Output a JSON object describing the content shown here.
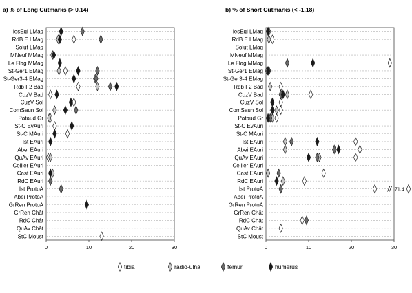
{
  "chart_data": [
    {
      "type": "scatter",
      "title": "a)  % of Long Cutmarks (> 0.14)",
      "categories": [
        "lesEgl LMag",
        "RdB E LMag",
        "Solut LMag",
        "MNeuf MMag",
        "Le Flag MMag",
        "St-Ger1 EMag",
        "St-Ger3-4 EMag",
        "Rdb F2 Bad",
        "CuzV Bad",
        "CuzV Sol",
        "ComSaun Sol",
        "Pataud Gr",
        "St-C EvAuri",
        "St-C MAuri",
        "Ist EAuri",
        "Abei EAuri",
        "QuAv EAuri",
        "Cellier EAuri",
        "Cast EAuri",
        "RdC EAuri",
        "Ist ProtoA",
        "Abei ProtoA",
        "GrRen ProtoA",
        "GrRen Chât",
        "RdC Chât",
        "QuAv Chât",
        "StC Moust"
      ],
      "xlim": [
        0,
        30
      ],
      "xticks": [
        "0",
        "10",
        "20",
        "30"
      ],
      "series": [
        {
          "name": "tibia",
          "values": [
            null,
            6.5,
            null,
            null,
            null,
            4.5,
            null,
            7.5,
            1,
            6.5,
            null,
            1,
            2,
            5,
            null,
            null,
            0.5,
            null,
            1,
            null,
            null,
            null,
            null,
            null,
            null,
            null,
            13
          ]
        },
        {
          "name": "radio-ulna",
          "values": [
            null,
            2.8,
            null,
            1.5,
            null,
            3,
            11.5,
            12,
            null,
            null,
            2,
            0.7,
            null,
            null,
            null,
            null,
            1,
            null,
            1.5,
            null,
            null,
            null,
            null,
            null,
            null,
            null,
            null
          ]
        },
        {
          "name": "femur",
          "values": [
            8.5,
            12.8,
            null,
            null,
            null,
            12,
            11.7,
            15,
            null,
            null,
            7,
            null,
            null,
            null,
            null,
            null,
            null,
            null,
            null,
            1,
            3.5,
            null,
            null,
            null,
            null,
            null,
            null
          ]
        },
        {
          "name": "humerus",
          "values": [
            3.5,
            3.2,
            null,
            1.8,
            3.2,
            7.5,
            6.5,
            16.5,
            2.5,
            5.8,
            4.5,
            null,
            6,
            2,
            1,
            null,
            null,
            null,
            1,
            null,
            null,
            null,
            9.5,
            null,
            null,
            null,
            null
          ]
        }
      ]
    },
    {
      "type": "scatter",
      "title": "b)  % of Short Cutmarks (< -1.18)",
      "categories": [
        "lesEgl LMag",
        "RdB E LMag",
        "Solut LMag",
        "MNeuf MMag",
        "Le Flag MMag",
        "St-Ger1 EMag",
        "St-Ger3-4 EMag",
        "Rdb F2 Bad",
        "CuzV Bad",
        "CuzV Sol",
        "ComSaun Sol",
        "Pataud Gr",
        "St-C EvAuri",
        "St-C MAuri",
        "Ist EAuri",
        "Abei EAuri",
        "QuAv EAuri",
        "Cellier EAuri",
        "Cast EAuri",
        "RdC EAuri",
        "Ist ProtoA",
        "Abei ProtoA",
        "GrRen ProtoA",
        "GrRen Chât",
        "RdC Chât",
        "QuAv Chât",
        "StC Moust"
      ],
      "xlim": [
        0,
        30
      ],
      "xticks": [
        "0",
        "10",
        "20",
        "30"
      ],
      "overflow_note": "71.4",
      "series": [
        {
          "name": "tibia",
          "values": [
            null,
            1.5,
            null,
            null,
            29,
            null,
            null,
            3.5,
            10.5,
            3.5,
            3.5,
            2.5,
            null,
            null,
            21,
            22,
            21,
            null,
            13.5,
            9,
            25.5,
            null,
            null,
            null,
            8.5,
            3.5,
            null
          ]
        },
        {
          "name": "radio-ulna",
          "values": [
            0.7,
            0.7,
            null,
            null,
            null,
            0.3,
            null,
            1,
            5,
            null,
            2.5,
            1.5,
            null,
            null,
            4.5,
            4.5,
            12.5,
            null,
            0.5,
            4,
            null,
            null,
            null,
            null,
            null,
            null,
            null
          ]
        },
        {
          "name": "femur",
          "values": [
            null,
            null,
            null,
            null,
            5,
            0.7,
            null,
            null,
            3.5,
            null,
            null,
            1,
            null,
            null,
            6,
            16,
            12,
            null,
            3,
            null,
            3.5,
            null,
            null,
            null,
            9.5,
            null,
            null
          ]
        },
        {
          "name": "humerus",
          "values": [
            0.5,
            null,
            null,
            null,
            11,
            0.5,
            null,
            null,
            4,
            1.5,
            1.5,
            0.5,
            null,
            null,
            12,
            17,
            10,
            null,
            null,
            2.5,
            null,
            null,
            null,
            null,
            null,
            null,
            null
          ]
        }
      ]
    }
  ],
  "legend": [
    {
      "label": "tibia",
      "fill": "#ffffff"
    },
    {
      "label": "radio-ulna",
      "fill": "#c8c8c8"
    },
    {
      "label": "femur",
      "fill": "#6b6b6b"
    },
    {
      "label": "humerus",
      "fill": "#1a1a1a"
    }
  ]
}
